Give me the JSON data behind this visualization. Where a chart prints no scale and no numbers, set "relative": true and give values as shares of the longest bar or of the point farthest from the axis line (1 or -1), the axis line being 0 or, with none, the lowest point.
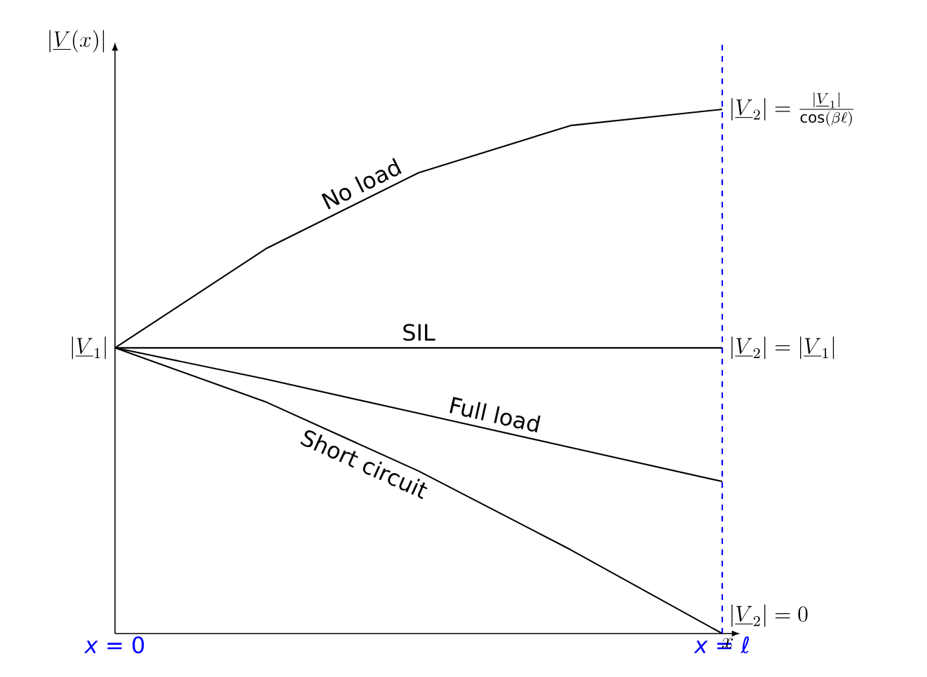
{
  "chart_data": {
    "type": "line",
    "relative": true,
    "marker": "none",
    "line_style": "solid",
    "xlabel": "x",
    "ylabel": "|\\underline{V}(x)|",
    "categories": [
      "*x* = 0",
      null,
      null,
      null,
      "*x* = ℓ"
    ],
    "series": [
      {
        "name": "No load",
        "color": "#000000",
        "values": [
          0.545,
          0.735,
          0.879,
          0.969,
          1
        ]
      },
      {
        "name": "SIL",
        "color": "#000000",
        "values": [
          0.545,
          0.545,
          0.545,
          0.545,
          0.545
        ]
      },
      {
        "name": "Full load",
        "color": "#000000",
        "values": [
          0.545,
          0.485,
          0.42,
          0.355,
          0.29
        ]
      },
      {
        "name": "Short circuit",
        "color": "#000000",
        "values": [
          0.545,
          0.441,
          0.31,
          0.16,
          0
        ]
      }
    ],
    "ref_lines": [
      {
        "axis": "x",
        "value": "*x* = ℓ",
        "color": "#0000ff",
        "line_style": "dashed"
      }
    ],
    "annotations": [
      {
        "text": "|\\underline{V}_1|",
        "x": "*x* = 0",
        "y": 0.545
      },
      {
        "text": "|\\underline{V}_2|=\\frac{|\\underline{V}_1|}{\\cos(\\beta\\ell)}",
        "x": "*x* = ℓ",
        "y": 1
      },
      {
        "text": "|\\underline{V}_2|=|\\underline{V}_1|",
        "x": "*x* = ℓ",
        "y": 0.545
      },
      {
        "text": "|\\underline{V}_2|=0",
        "x": "*x* = ℓ",
        "y": 0
      }
    ]
  }
}
